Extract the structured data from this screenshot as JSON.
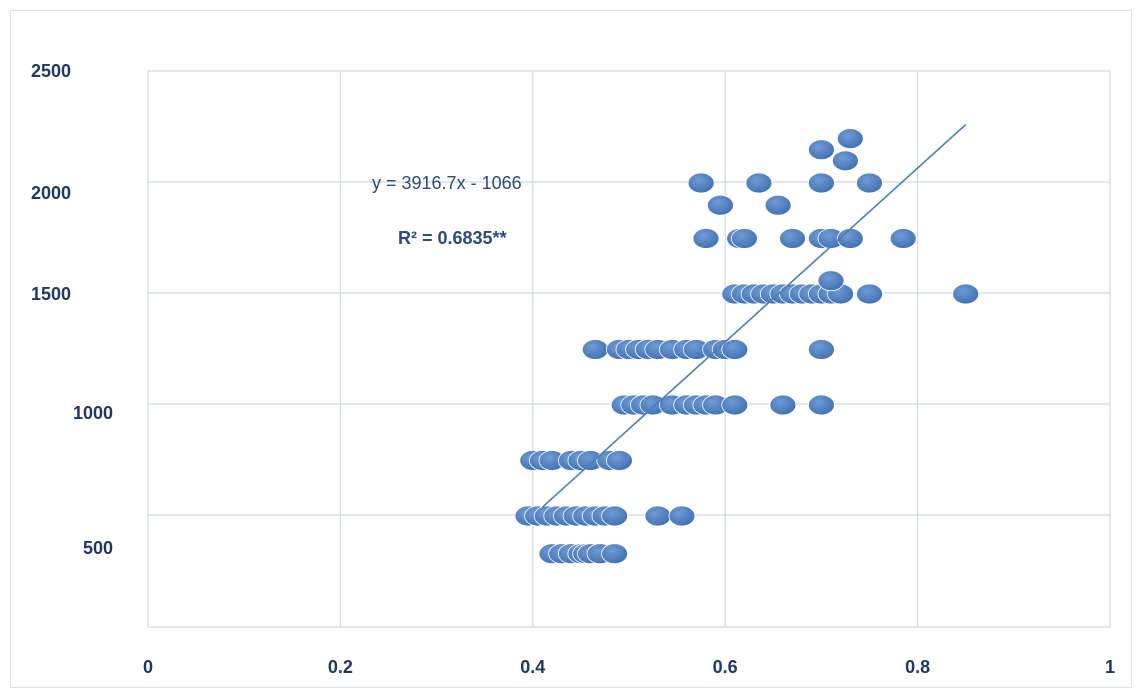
{
  "chart_data": {
    "type": "scatter",
    "title": "",
    "xlabel": "",
    "ylabel": "",
    "xlim": [
      0,
      1
    ],
    "x_ticks": [
      "0",
      "0.2",
      "0.4",
      "0.6",
      "0.8",
      "1"
    ],
    "y_ticks": [
      "500",
      "1000",
      "1500",
      "2000",
      "2500"
    ],
    "grid": true,
    "marker_color": "#4a7ebb",
    "trendline_color": "#4a7ebb",
    "annotations": {
      "equation": "y = 3916.7x - 1066",
      "r_squared": "R² = 0.6835**"
    },
    "trendline": {
      "slope": 3916.7,
      "intercept": -1066,
      "x_range": [
        0.41,
        0.85
      ]
    },
    "series": [
      {
        "points": [
          [
            0.42,
            330
          ],
          [
            0.43,
            330
          ],
          [
            0.44,
            330
          ],
          [
            0.45,
            330
          ],
          [
            0.455,
            330
          ],
          [
            0.46,
            330
          ],
          [
            0.47,
            330
          ],
          [
            0.485,
            330
          ],
          [
            0.395,
            500
          ],
          [
            0.405,
            500
          ],
          [
            0.415,
            500
          ],
          [
            0.425,
            500
          ],
          [
            0.435,
            500
          ],
          [
            0.445,
            500
          ],
          [
            0.455,
            500
          ],
          [
            0.465,
            500
          ],
          [
            0.475,
            500
          ],
          [
            0.485,
            500
          ],
          [
            0.53,
            500
          ],
          [
            0.555,
            500
          ],
          [
            0.4,
            750
          ],
          [
            0.41,
            750
          ],
          [
            0.42,
            750
          ],
          [
            0.44,
            750
          ],
          [
            0.45,
            750
          ],
          [
            0.46,
            750
          ],
          [
            0.48,
            750
          ],
          [
            0.49,
            750
          ],
          [
            0.495,
            1000
          ],
          [
            0.505,
            1000
          ],
          [
            0.515,
            1000
          ],
          [
            0.525,
            1000
          ],
          [
            0.545,
            1000
          ],
          [
            0.56,
            1000
          ],
          [
            0.57,
            1000
          ],
          [
            0.58,
            1000
          ],
          [
            0.59,
            1000
          ],
          [
            0.61,
            1000
          ],
          [
            0.66,
            1000
          ],
          [
            0.7,
            1000
          ],
          [
            0.465,
            1250
          ],
          [
            0.49,
            1250
          ],
          [
            0.5,
            1250
          ],
          [
            0.51,
            1250
          ],
          [
            0.52,
            1250
          ],
          [
            0.53,
            1250
          ],
          [
            0.545,
            1250
          ],
          [
            0.56,
            1250
          ],
          [
            0.57,
            1250
          ],
          [
            0.59,
            1250
          ],
          [
            0.6,
            1250
          ],
          [
            0.61,
            1250
          ],
          [
            0.7,
            1250
          ],
          [
            0.61,
            1500
          ],
          [
            0.62,
            1500
          ],
          [
            0.63,
            1500
          ],
          [
            0.64,
            1500
          ],
          [
            0.65,
            1500
          ],
          [
            0.66,
            1500
          ],
          [
            0.67,
            1500
          ],
          [
            0.68,
            1500
          ],
          [
            0.69,
            1500
          ],
          [
            0.7,
            1500
          ],
          [
            0.71,
            1500
          ],
          [
            0.72,
            1500
          ],
          [
            0.75,
            1500
          ],
          [
            0.85,
            1500
          ],
          [
            0.71,
            1560
          ],
          [
            0.58,
            1750
          ],
          [
            0.615,
            1750
          ],
          [
            0.62,
            1750
          ],
          [
            0.67,
            1750
          ],
          [
            0.7,
            1750
          ],
          [
            0.71,
            1750
          ],
          [
            0.73,
            1750
          ],
          [
            0.785,
            1750
          ],
          [
            0.595,
            1900
          ],
          [
            0.655,
            1900
          ],
          [
            0.575,
            2000
          ],
          [
            0.635,
            2000
          ],
          [
            0.7,
            2000
          ],
          [
            0.75,
            2000
          ],
          [
            0.7,
            2150
          ],
          [
            0.725,
            2100
          ],
          [
            0.73,
            2200
          ]
        ]
      }
    ]
  }
}
